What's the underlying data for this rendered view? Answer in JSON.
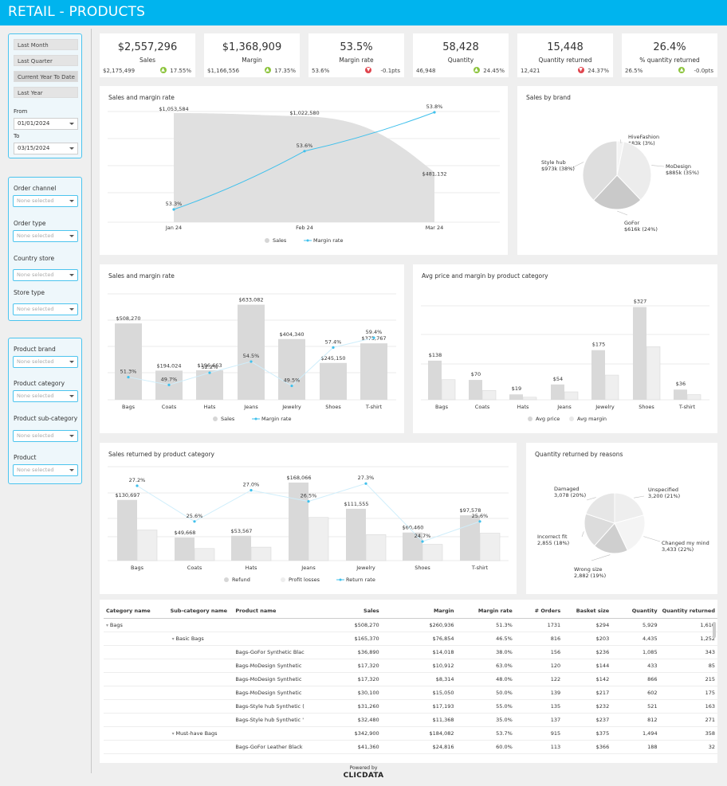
{
  "header": {
    "title": "RETAIL - PRODUCTS",
    "brand_color": "#00b4ee"
  },
  "filters": {
    "presets": [
      "Last Month",
      "Last Quarter",
      "Current Year To Date",
      "Last Year"
    ],
    "from_label": "From",
    "from_value": "01/01/2024",
    "to_label": "To",
    "to_value": "03/15/2024",
    "group1": [
      {
        "label": "Order channel",
        "value": "None selected"
      },
      {
        "label": "Order type",
        "value": "None selected"
      },
      {
        "label": "Country store",
        "value": "None selected"
      },
      {
        "label": "Store type",
        "value": "None selected"
      }
    ],
    "group2": [
      {
        "label": "Product brand",
        "value": "None selected"
      },
      {
        "label": "Product category",
        "value": "None selected"
      },
      {
        "label": "Product sub-category",
        "value": "None selected"
      },
      {
        "label": "Product",
        "value": "None selected"
      }
    ]
  },
  "kpis": [
    {
      "value": "$2,557,296",
      "label": "Sales",
      "prev": "$2,175,499",
      "change": "17.55%",
      "dir": "up"
    },
    {
      "value": "$1,368,909",
      "label": "Margin",
      "prev": "$1,166,556",
      "change": "17.35%",
      "dir": "up"
    },
    {
      "value": "53.5%",
      "label": "Margin rate",
      "prev": "53.6%",
      "change": "-0.1pts",
      "dir": "down"
    },
    {
      "value": "58,428",
      "label": "Quantity",
      "prev": "46,948",
      "change": "24.45%",
      "dir": "up"
    },
    {
      "value": "15,448",
      "label": "Quantity returned",
      "prev": "12,421",
      "change": "24.37%",
      "dir": "down"
    },
    {
      "value": "26.4%",
      "label": "% quantity returned",
      "prev": "26.5%",
      "change": "-0.0pts",
      "dir": "up"
    }
  ],
  "chart_data": [
    {
      "type": "area",
      "title": "Sales and margin rate",
      "categories": [
        "Jan 24",
        "Feb 24",
        "Mar 24"
      ],
      "series": [
        {
          "name": "Sales",
          "values": [
            1053584,
            1022580,
            481132
          ],
          "labels": [
            "$1,053,584",
            "$1,022,580",
            "$481,132"
          ]
        },
        {
          "name": "Margin rate",
          "values": [
            53.3,
            53.6,
            53.8
          ],
          "labels": [
            "53.3%",
            "53.6%",
            "53.8%"
          ]
        }
      ],
      "legend": [
        "Sales",
        "Margin rate"
      ]
    },
    {
      "type": "pie",
      "title": "Sales by brand",
      "slices": [
        {
          "name": "HiveFashion",
          "value": 83,
          "label": "$83k (3%)"
        },
        {
          "name": "MoDesign",
          "value": 885,
          "label": "$885k (35%)"
        },
        {
          "name": "GoFor",
          "value": 616,
          "label": "$616k (24%)"
        },
        {
          "name": "Style hub",
          "value": 973,
          "label": "$973k (38%)"
        }
      ]
    },
    {
      "type": "bar",
      "title": "Sales and margin rate",
      "categories": [
        "Bags",
        "Coats",
        "Hats",
        "Jeans",
        "Jewelry",
        "Shoes",
        "T-shirt"
      ],
      "series": [
        {
          "name": "Sales",
          "values": [
            508270,
            194024,
            196663,
            633082,
            404340,
            245150,
            375767
          ],
          "labels": [
            "$508,270",
            "$194,024",
            "$196,663",
            "$633,082",
            "$404,340",
            "$245,150",
            "$375,767"
          ]
        },
        {
          "name": "Margin rate",
          "values": [
            51.3,
            49.7,
            52.2,
            54.5,
            49.5,
            57.4,
            59.4
          ],
          "labels": [
            "51.3%",
            "49.7%",
            "52.2%",
            "54.5%",
            "49.5%",
            "57.4%",
            "59.4%"
          ]
        }
      ],
      "legend": [
        "Sales",
        "Margin rate"
      ]
    },
    {
      "type": "bar",
      "title": "Avg price and margin by product category",
      "categories": [
        "Bags",
        "Coats",
        "Hats",
        "Jeans",
        "Jewelry",
        "Shoes",
        "T-shirt"
      ],
      "series": [
        {
          "name": "Avg price",
          "values": [
            138,
            70,
            19,
            54,
            175,
            327,
            36
          ],
          "labels": [
            "$138",
            "$70",
            "$19",
            "$54",
            "$175",
            "$327",
            "$36"
          ]
        },
        {
          "name": "Avg margin",
          "values": [
            71,
            33,
            9,
            28,
            87,
            187,
            18
          ]
        }
      ],
      "legend": [
        "Avg price",
        "Avg margin"
      ]
    },
    {
      "type": "bar",
      "title": "Sales returned by product category",
      "categories": [
        "Bags",
        "Coats",
        "Hats",
        "Jeans",
        "Jewelry",
        "Shoes",
        "T-shirt"
      ],
      "series": [
        {
          "name": "Refund",
          "values": [
            130697,
            49668,
            53567,
            168066,
            111555,
            60460,
            97578
          ],
          "labels": [
            "$130,697",
            "$49,668",
            "$53,567",
            "$168,066",
            "$111,555",
            "$60,460",
            "$97,578"
          ]
        },
        {
          "name": "Profit losses",
          "values": [
            66000,
            26000,
            29000,
            93000,
            56000,
            35000,
            59000
          ]
        },
        {
          "name": "Return rate",
          "values": [
            27.2,
            25.6,
            27.0,
            26.5,
            27.3,
            24.7,
            25.6
          ],
          "labels": [
            "27.2%",
            "25.6%",
            "27.0%",
            "26.5%",
            "27.3%",
            "24.7%",
            "25.6%"
          ]
        }
      ],
      "legend": [
        "Refund",
        "Profit losses",
        "Return rate"
      ]
    },
    {
      "type": "pie",
      "title": "Quantity returned by reasons",
      "slices": [
        {
          "name": "Unspecified",
          "value": 3200,
          "label": "3,200 (21%)"
        },
        {
          "name": "Changed my mind",
          "value": 3433,
          "label": "3,433 (22%)"
        },
        {
          "name": "Wrong size",
          "value": 2882,
          "label": "2,882 (19%)"
        },
        {
          "name": "Incorrect fit",
          "value": 2855,
          "label": "2,855 (18%)"
        },
        {
          "name": "Damaged",
          "value": 3078,
          "label": "3,078 (20%)"
        }
      ]
    }
  ],
  "table": {
    "headers": [
      "Category name",
      "Sub-category name",
      "Product name",
      "Sales",
      "Margin",
      "Margin rate",
      "# Orders",
      "Basket size",
      "Quantity",
      "Quantity returned"
    ],
    "rows": [
      [
        "Bags",
        "",
        "",
        "$508,270",
        "$260,936",
        "51.3%",
        "1731",
        "$294",
        "5,929",
        "1,610"
      ],
      [
        "",
        "Basic Bags",
        "",
        "$165,370",
        "$76,854",
        "46.5%",
        "816",
        "$203",
        "4,435",
        "1,252"
      ],
      [
        "",
        "",
        "Bags-GoFor Synthetic Blac",
        "$36,890",
        "$14,018",
        "38.0%",
        "156",
        "$236",
        "1,085",
        "343"
      ],
      [
        "",
        "",
        "Bags-MoDesign Synthetic",
        "$17,320",
        "$10,912",
        "63.0%",
        "120",
        "$144",
        "433",
        "85"
      ],
      [
        "",
        "",
        "Bags-MoDesign Synthetic",
        "$17,320",
        "$8,314",
        "48.0%",
        "122",
        "$142",
        "866",
        "215"
      ],
      [
        "",
        "",
        "Bags-MoDesign Synthetic",
        "$30,100",
        "$15,050",
        "50.0%",
        "139",
        "$217",
        "602",
        "175"
      ],
      [
        "",
        "",
        "Bags-Style hub Synthetic (",
        "$31,260",
        "$17,193",
        "55.0%",
        "135",
        "$232",
        "521",
        "163"
      ],
      [
        "",
        "",
        "Bags-Style hub Synthetic '",
        "$32,480",
        "$11,368",
        "35.0%",
        "137",
        "$237",
        "812",
        "271"
      ],
      [
        "",
        "Must-have Bags",
        "",
        "$342,900",
        "$184,082",
        "53.7%",
        "915",
        "$375",
        "1,494",
        "358"
      ],
      [
        "",
        "",
        "Bags-GoFor Leather Black",
        "$41,360",
        "$24,816",
        "60.0%",
        "113",
        "$366",
        "188",
        "32"
      ]
    ]
  },
  "footer": {
    "powered": "Powered by",
    "logo": "CLICDATA"
  }
}
